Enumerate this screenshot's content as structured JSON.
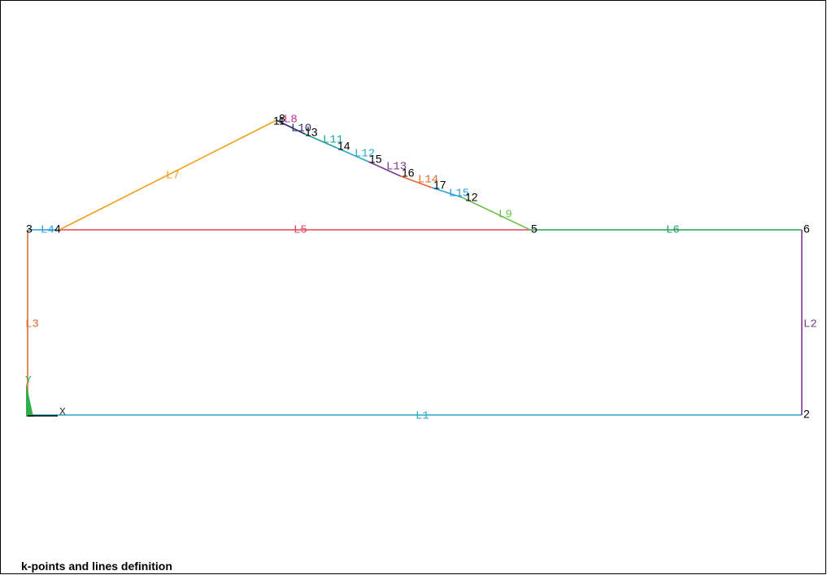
{
  "caption": "k-points and lines definition",
  "axes": {
    "x_label": "X",
    "y_label": "Y"
  },
  "keypoints": [
    {
      "id": "3",
      "label": "3"
    },
    {
      "id": "4",
      "label": "4"
    },
    {
      "id": "5",
      "label": "5"
    },
    {
      "id": "6",
      "label": "6"
    },
    {
      "id": "2",
      "label": "2"
    },
    {
      "id": "8",
      "label": "8"
    },
    {
      "id": "11",
      "label": "11"
    },
    {
      "id": "12",
      "label": "12"
    },
    {
      "id": "13",
      "label": "13"
    },
    {
      "id": "14",
      "label": "14"
    },
    {
      "id": "15",
      "label": "15"
    },
    {
      "id": "16",
      "label": "16"
    },
    {
      "id": "17",
      "label": "17"
    }
  ],
  "lines": [
    {
      "id": "L1",
      "label": "L1",
      "color": "#2aa7c9"
    },
    {
      "id": "L2",
      "label": "L2",
      "color": "#7a3a8c"
    },
    {
      "id": "L3",
      "label": "L3",
      "color": "#e4692c"
    },
    {
      "id": "L4",
      "label": "L4",
      "color": "#2a9fd8"
    },
    {
      "id": "L5",
      "label": "L5",
      "color": "#e3435c"
    },
    {
      "id": "L6",
      "label": "L6",
      "color": "#22a05e"
    },
    {
      "id": "L7",
      "label": "L7",
      "color": "#f29e1e"
    },
    {
      "id": "L8",
      "label": "L8",
      "color": "#c82c8c"
    },
    {
      "id": "L9",
      "label": "L9",
      "color": "#6cc04a"
    },
    {
      "id": "L10",
      "label": "L10",
      "color": "#2b2b6b"
    },
    {
      "id": "L11",
      "label": "L11",
      "color": "#1ea09a"
    },
    {
      "id": "L12",
      "label": "L12",
      "color": "#2aa7c9"
    },
    {
      "id": "L13",
      "label": "L13",
      "color": "#7a3a8c"
    },
    {
      "id": "L14",
      "label": "L14",
      "color": "#e4692c"
    },
    {
      "id": "L15",
      "label": "L15",
      "color": "#2a9fd8"
    }
  ],
  "triad_color": "#2db04b"
}
